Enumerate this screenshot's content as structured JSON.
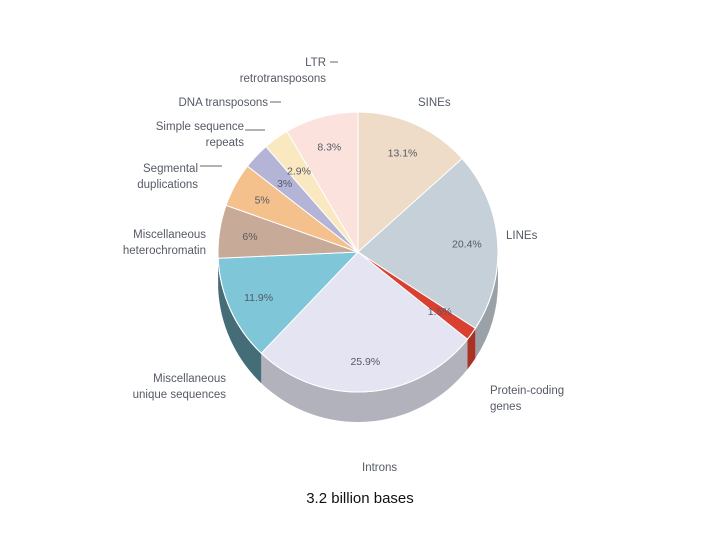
{
  "chart_data": {
    "type": "pie",
    "title": "",
    "caption": "3.2 billion bases",
    "slices": [
      {
        "label": "SINEs",
        "value": 13.1,
        "value_label": "13.1%",
        "color": "#efdcc8"
      },
      {
        "label": "LINEs",
        "value": 20.4,
        "value_label": "20.4%",
        "color": "#c6d0d8"
      },
      {
        "label": "",
        "value": 1.5,
        "value_label": "1.5%",
        "color": "#d94030"
      },
      {
        "label": "Introns",
        "value": 25.9,
        "value_label": "25.9%",
        "color": "#e4e4f2"
      },
      {
        "label": "Miscellaneous unique sequences",
        "value": 11.9,
        "value_label": "11.9%",
        "color": "#7ec6d8"
      },
      {
        "label": "Miscellaneous heterochromatin",
        "value": 6,
        "value_label": "6%",
        "color": "#c8aa98"
      },
      {
        "label": "Segmental duplications",
        "value": 5,
        "value_label": "5%",
        "color": "#f4c08c"
      },
      {
        "label": "Simple sequence repeats",
        "value": 3,
        "value_label": "3%",
        "color": "#b4b4d6"
      },
      {
        "label": "DNA transposons",
        "value": 2.9,
        "value_label": "2.9%",
        "color": "#fae8c0"
      },
      {
        "label": "LTR retrotransposons",
        "value": 8.3,
        "value_label": "8.3%",
        "color": "#fbe2dc"
      }
    ],
    "external_labels": {
      "sines": "SINEs",
      "lines": "LINEs",
      "protein_1": "Protein-coding",
      "protein_2": "genes",
      "introns": "Introns",
      "unique_1": "Miscellaneous",
      "unique_2": "unique sequences",
      "hetero_1": "Miscellaneous",
      "hetero_2": "heterochromatin",
      "segdup_1": "Segmental",
      "segdup_2": "duplications",
      "ssr_1": "Simple sequence",
      "ssr_2": "repeats",
      "dna": "DNA transposons",
      "ltr_1": "LTR",
      "ltr_2": "retrotransposons"
    },
    "legend": "none"
  }
}
